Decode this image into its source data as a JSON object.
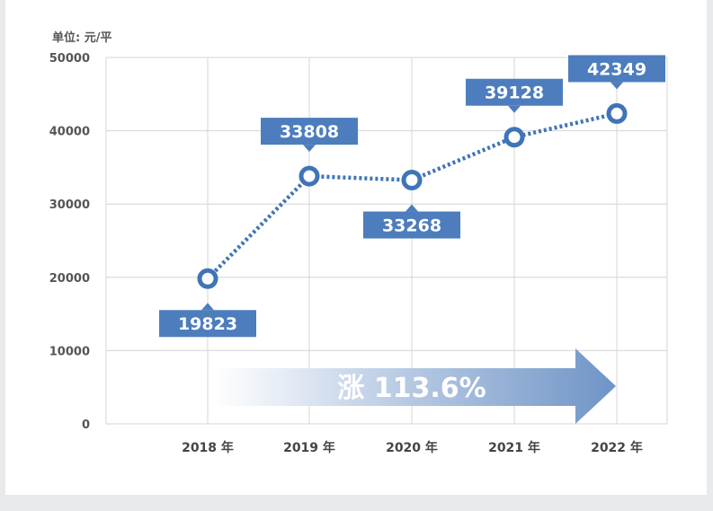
{
  "chart_data": {
    "type": "line",
    "unit_label": "单位: 元/平",
    "categories": [
      "2018 年",
      "2019 年",
      "2020 年",
      "2021 年",
      "2022 年"
    ],
    "values": [
      19823,
      33808,
      33268,
      39128,
      42349
    ],
    "data_labels": [
      "19823",
      "33808",
      "33268",
      "39128",
      "42349"
    ],
    "yticks": [
      "0",
      "10000",
      "20000",
      "30000",
      "40000",
      "50000"
    ],
    "ylim": [
      0,
      50000
    ],
    "grid": true,
    "annotation": "涨 113.6%",
    "colors": {
      "line": "#3f74b8",
      "label_bg": "#4d7dbd",
      "arrow": "#7d9fcd",
      "grid": "#d4d4d4"
    }
  }
}
